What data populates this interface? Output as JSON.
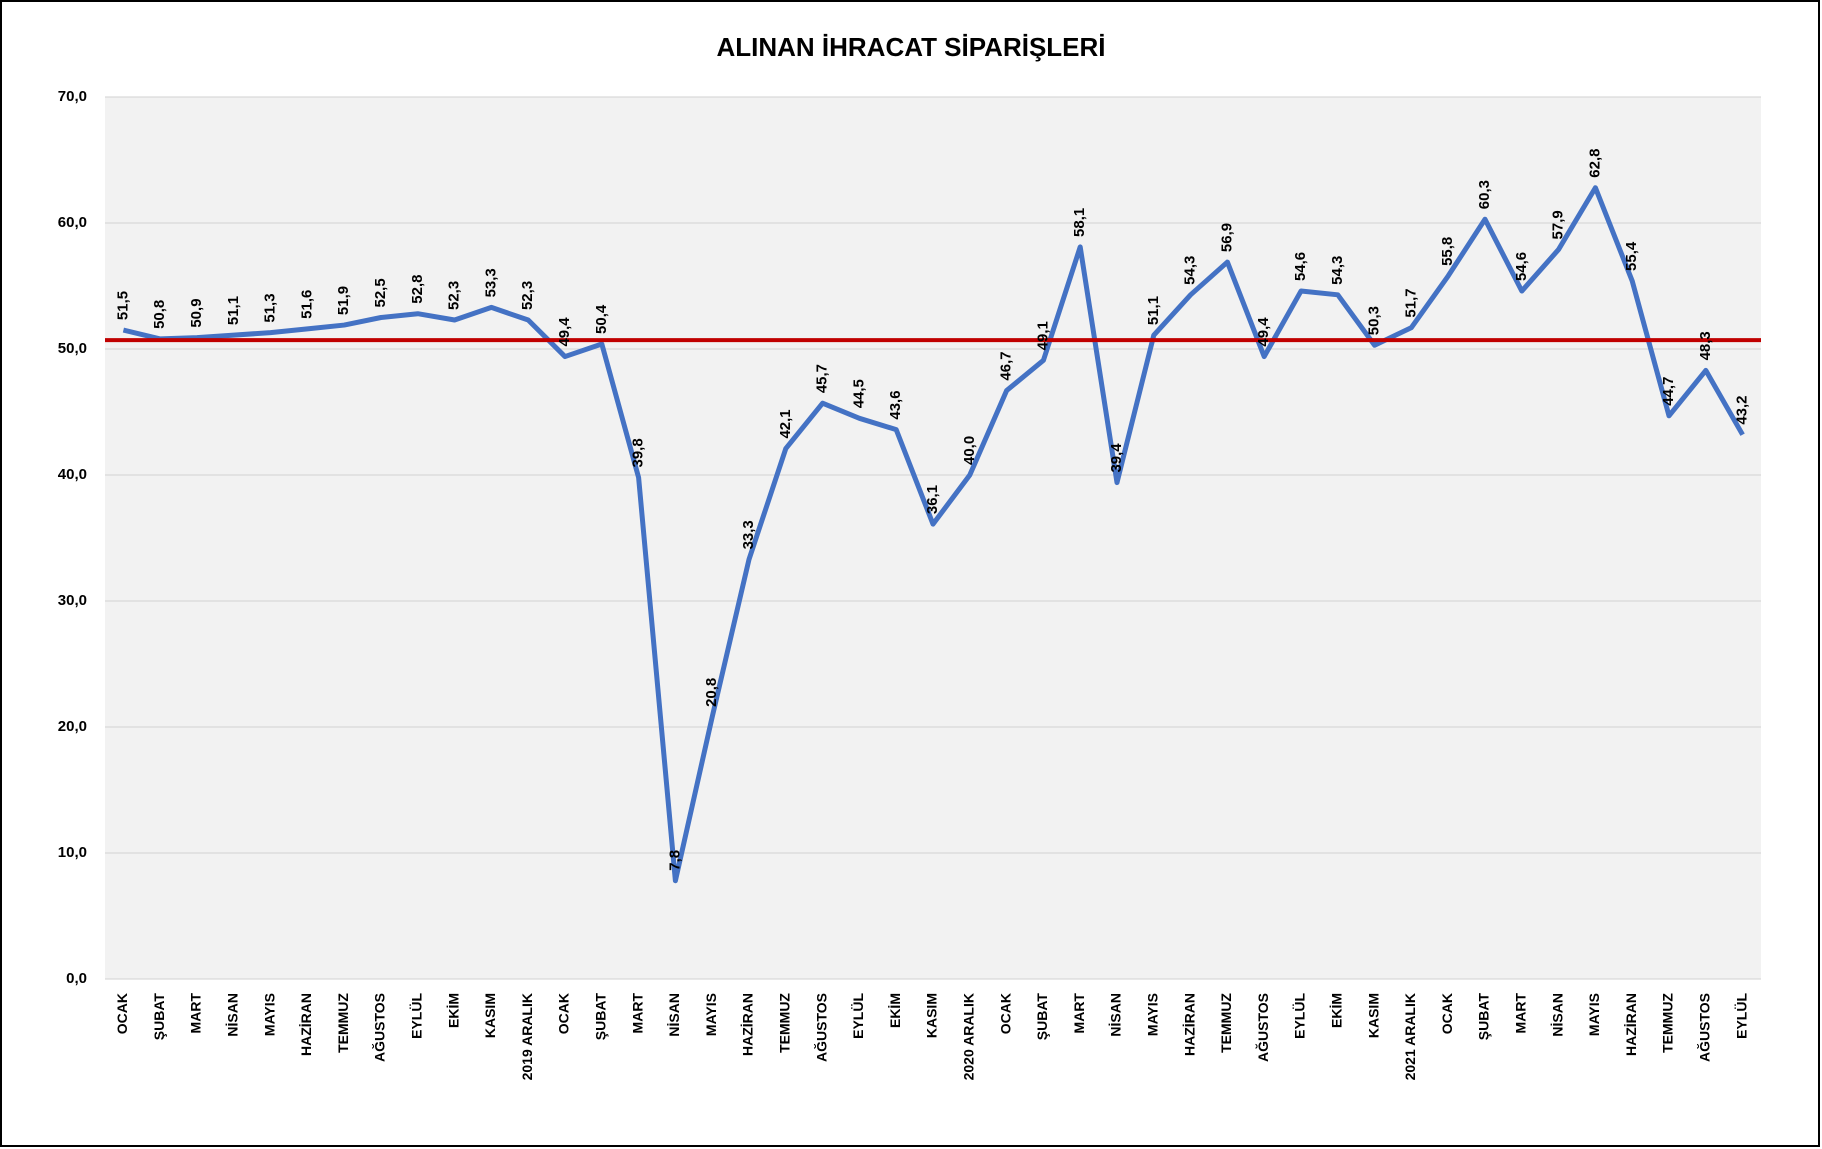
{
  "chart_data": {
    "type": "line",
    "title": "ALINAN İHRACAT SİPARİŞLERİ",
    "categories": [
      "OCAK",
      "ŞUBAT",
      "MART",
      "NİSAN",
      "MAYIS",
      "HAZİRAN",
      "TEMMUZ",
      "AĞUSTOS",
      "EYLÜL",
      "EKİM",
      "KASIM",
      "2019 ARALIK",
      "OCAK",
      "ŞUBAT",
      "MART",
      "NİSAN",
      "MAYIS",
      "HAZİRAN",
      "TEMMUZ",
      "AĞUSTOS",
      "EYLÜL",
      "EKİM",
      "KASIM",
      "2020 ARALIK",
      "OCAK",
      "ŞUBAT",
      "MART",
      "NİSAN",
      "MAYIS",
      "HAZİRAN",
      "TEMMUZ",
      "AĞUSTOS",
      "EYLÜL",
      "EKİM",
      "KASIM",
      "2021 ARALIK",
      "OCAK",
      "ŞUBAT",
      "MART",
      "NİSAN",
      "MAYIS",
      "HAZİRAN",
      "TEMMUZ",
      "AĞUSTOS",
      "EYLÜL"
    ],
    "values": [
      51.5,
      50.8,
      50.9,
      51.1,
      51.3,
      51.6,
      51.9,
      52.5,
      52.8,
      52.3,
      53.3,
      52.3,
      49.4,
      50.4,
      39.8,
      7.8,
      20.8,
      33.3,
      42.1,
      45.7,
      44.5,
      43.6,
      36.1,
      40.0,
      46.7,
      49.1,
      58.1,
      39.4,
      51.1,
      54.3,
      56.9,
      49.4,
      54.6,
      54.3,
      50.3,
      51.7,
      55.8,
      60.3,
      54.6,
      57.9,
      62.8,
      55.4,
      44.7,
      48.3,
      43.2
    ],
    "value_labels": [
      "51,5",
      "50,8",
      "50,9",
      "51,1",
      "51,3",
      "51,6",
      "51,9",
      "52,5",
      "52,8",
      "52,3",
      "53,3",
      "52,3",
      "49,4",
      "50,4",
      "39,8",
      "7,8",
      "20,8",
      "33,3",
      "42,1",
      "45,7",
      "44,5",
      "43,6",
      "36,1",
      "40,0",
      "46,7",
      "49,1",
      "58,1",
      "39,4",
      "51,1",
      "54,3",
      "56,9",
      "49,4",
      "54,6",
      "54,3",
      "50,3",
      "51,7",
      "55,8",
      "60,3",
      "54,6",
      "57,9",
      "62,8",
      "55,4",
      "44,7",
      "48,3",
      "43,2"
    ],
    "color": "#4472c4",
    "reference_line": {
      "value": 50.7,
      "color": "#c00000"
    },
    "ylim": [
      0,
      70
    ],
    "yticks": [
      {
        "value": 0,
        "label": "0,0"
      },
      {
        "value": 10,
        "label": "10,0"
      },
      {
        "value": 20,
        "label": "20,0"
      },
      {
        "value": 30,
        "label": "30,0"
      },
      {
        "value": 40,
        "label": "40,0"
      },
      {
        "value": 50,
        "label": "50,0"
      },
      {
        "value": 60,
        "label": "60,0"
      },
      {
        "value": 70,
        "label": "70,0"
      }
    ],
    "grid": true
  }
}
